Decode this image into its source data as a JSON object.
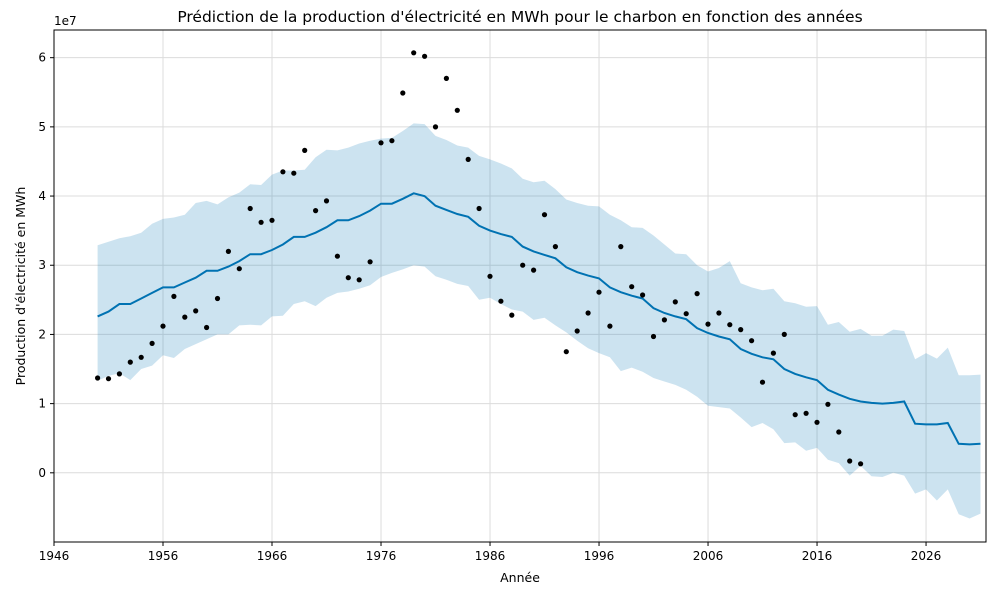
{
  "chart_data": {
    "type": "line",
    "title": "Prédiction de la production d'électricité en MWh pour le charbon en fonction des années",
    "xlabel": "Année",
    "ylabel": "Production d'électricité en MWh",
    "y_offset_label": "1e7",
    "y_multiplier": 10000000,
    "xlim": [
      1946,
      2031.5
    ],
    "ylim": [
      -1.0,
      6.4
    ],
    "x_ticks": [
      1946,
      1956,
      1966,
      1976,
      1986,
      1996,
      2006,
      2016,
      2026
    ],
    "y_ticks": [
      0,
      1,
      2,
      3,
      4,
      5,
      6
    ],
    "grid": true,
    "colors": {
      "forecast": "#0072B2",
      "band": "#0072B2",
      "band_opacity": 0.2,
      "observed": "#000000"
    },
    "observed": {
      "x": [
        1950,
        1951,
        1952,
        1953,
        1954,
        1955,
        1956,
        1957,
        1958,
        1959,
        1960,
        1961,
        1962,
        1963,
        1964,
        1965,
        1966,
        1967,
        1968,
        1969,
        1970,
        1971,
        1972,
        1973,
        1974,
        1975,
        1976,
        1977,
        1978,
        1979,
        1980,
        1981,
        1982,
        1983,
        1984,
        1985,
        1986,
        1987,
        1988,
        1989,
        1990,
        1991,
        1992,
        1993,
        1994,
        1995,
        1996,
        1997,
        1998,
        1999,
        2000,
        2001,
        2002,
        2003,
        2004,
        2005,
        2006,
        2007,
        2008,
        2009,
        2010,
        2011,
        2012,
        2013,
        2014,
        2015,
        2016,
        2017,
        2018,
        2019,
        2020
      ],
      "y": [
        1.37,
        1.36,
        1.43,
        1.6,
        1.67,
        1.87,
        2.12,
        2.55,
        2.25,
        2.34,
        2.1,
        2.52,
        3.2,
        2.95,
        3.82,
        3.62,
        3.65,
        4.35,
        4.33,
        4.66,
        3.79,
        3.93,
        3.13,
        2.82,
        2.79,
        3.05,
        4.77,
        4.8,
        5.49,
        6.07,
        6.02,
        5.0,
        5.7,
        5.24,
        4.53,
        3.82,
        2.84,
        2.48,
        2.28,
        3.0,
        2.93,
        3.73,
        3.27,
        1.75,
        2.05,
        2.31,
        2.61,
        2.12,
        3.27,
        2.69,
        2.57,
        1.97,
        2.21,
        2.47,
        2.3,
        2.59,
        2.15,
        2.31,
        2.14,
        2.07,
        1.91,
        1.31,
        1.73,
        2.0,
        0.84,
        0.86,
        0.73,
        0.99,
        0.59,
        0.17,
        0.13
      ]
    },
    "forecast": {
      "x": [
        1950,
        1951,
        1952,
        1953,
        1954,
        1955,
        1956,
        1957,
        1958,
        1959,
        1960,
        1961,
        1962,
        1963,
        1964,
        1965,
        1966,
        1967,
        1968,
        1969,
        1970,
        1971,
        1972,
        1973,
        1974,
        1975,
        1976,
        1977,
        1978,
        1979,
        1980,
        1981,
        1982,
        1983,
        1984,
        1985,
        1986,
        1987,
        1988,
        1989,
        1990,
        1991,
        1992,
        1993,
        1994,
        1995,
        1996,
        1997,
        1998,
        1999,
        2000,
        2001,
        2002,
        2003,
        2004,
        2005,
        2006,
        2007,
        2008,
        2009,
        2010,
        2011,
        2012,
        2013,
        2014,
        2015,
        2016,
        2017,
        2018,
        2019,
        2020,
        2021,
        2022,
        2023,
        2024,
        2025,
        2026,
        2027,
        2028,
        2029,
        2030,
        2031
      ],
      "yhat": [
        2.26,
        2.33,
        2.44,
        2.44,
        2.52,
        2.6,
        2.68,
        2.68,
        2.75,
        2.82,
        2.92,
        2.92,
        2.98,
        3.06,
        3.16,
        3.16,
        3.22,
        3.3,
        3.41,
        3.41,
        3.47,
        3.55,
        3.65,
        3.65,
        3.71,
        3.79,
        3.89,
        3.89,
        3.96,
        4.04,
        4.0,
        3.86,
        3.8,
        3.74,
        3.7,
        3.57,
        3.5,
        3.45,
        3.41,
        3.27,
        3.2,
        3.15,
        3.1,
        2.97,
        2.9,
        2.85,
        2.81,
        2.68,
        2.61,
        2.56,
        2.52,
        2.38,
        2.31,
        2.26,
        2.22,
        2.09,
        2.02,
        1.97,
        1.93,
        1.79,
        1.72,
        1.67,
        1.64,
        1.5,
        1.43,
        1.38,
        1.34,
        1.2,
        1.13,
        1.07,
        1.03,
        1.01,
        1.0,
        1.01,
        1.03,
        0.71,
        0.7,
        0.7,
        0.72,
        0.42,
        0.41,
        0.42
      ],
      "upper": [
        3.29,
        3.34,
        3.39,
        3.42,
        3.47,
        3.6,
        3.67,
        3.69,
        3.73,
        3.9,
        3.93,
        3.88,
        3.98,
        4.05,
        4.17,
        4.16,
        4.31,
        4.37,
        4.37,
        4.38,
        4.56,
        4.67,
        4.66,
        4.7,
        4.76,
        4.8,
        4.83,
        4.84,
        4.94,
        5.05,
        5.04,
        4.87,
        4.81,
        4.73,
        4.7,
        4.58,
        4.53,
        4.47,
        4.4,
        4.25,
        4.2,
        4.22,
        4.1,
        3.95,
        3.9,
        3.86,
        3.85,
        3.73,
        3.65,
        3.55,
        3.54,
        3.43,
        3.3,
        3.17,
        3.16,
        3.0,
        2.91,
        2.96,
        3.06,
        2.74,
        2.68,
        2.64,
        2.66,
        2.48,
        2.45,
        2.4,
        2.41,
        2.14,
        2.18,
        2.04,
        2.08,
        1.98,
        1.98,
        2.07,
        2.05,
        1.64,
        1.73,
        1.65,
        1.81,
        1.41,
        1.41,
        1.42
      ],
      "lower": [
        1.33,
        1.4,
        1.44,
        1.34,
        1.5,
        1.55,
        1.7,
        1.66,
        1.79,
        1.86,
        1.93,
        2.0,
        2.0,
        2.13,
        2.14,
        2.13,
        2.26,
        2.27,
        2.44,
        2.48,
        2.41,
        2.53,
        2.6,
        2.62,
        2.66,
        2.71,
        2.83,
        2.89,
        2.94,
        3.0,
        2.98,
        2.84,
        2.79,
        2.73,
        2.7,
        2.5,
        2.53,
        2.44,
        2.36,
        2.33,
        2.21,
        2.24,
        2.13,
        2.03,
        1.91,
        1.8,
        1.73,
        1.67,
        1.47,
        1.52,
        1.46,
        1.37,
        1.32,
        1.27,
        1.2,
        1.1,
        0.97,
        0.95,
        0.93,
        0.8,
        0.66,
        0.72,
        0.63,
        0.43,
        0.44,
        0.32,
        0.36,
        0.19,
        0.14,
        -0.04,
        0.1,
        -0.05,
        -0.06,
        0.0,
        -0.04,
        -0.3,
        -0.24,
        -0.4,
        -0.24,
        -0.6,
        -0.66,
        -0.59
      ]
    }
  }
}
